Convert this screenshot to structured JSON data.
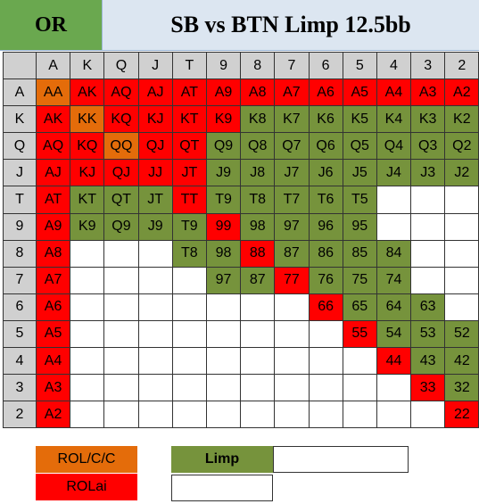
{
  "header": {
    "left_title": "OR",
    "right_title": "SB vs BTN Limp 12.5bb"
  },
  "ranks": [
    "A",
    "K",
    "Q",
    "J",
    "T",
    "9",
    "8",
    "7",
    "6",
    "5",
    "4",
    "3",
    "2"
  ],
  "colors": {
    "rolcc": "#e46c0a",
    "rolai": "#ff0000",
    "limp": "#76933c",
    "fold": "#ffffff",
    "label": "#d0d0d0"
  },
  "grid": [
    [
      [
        "AA",
        "rolcc"
      ],
      [
        "AK",
        "rolai"
      ],
      [
        "AQ",
        "rolai"
      ],
      [
        "AJ",
        "rolai"
      ],
      [
        "AT",
        "rolai"
      ],
      [
        "A9",
        "rolai"
      ],
      [
        "A8",
        "rolai"
      ],
      [
        "A7",
        "rolai"
      ],
      [
        "A6",
        "rolai"
      ],
      [
        "A5",
        "rolai"
      ],
      [
        "A4",
        "rolai"
      ],
      [
        "A3",
        "rolai"
      ],
      [
        "A2",
        "rolai"
      ]
    ],
    [
      [
        "AK",
        "rolai"
      ],
      [
        "KK",
        "rolcc"
      ],
      [
        "KQ",
        "rolai"
      ],
      [
        "KJ",
        "rolai"
      ],
      [
        "KT",
        "rolai"
      ],
      [
        "K9",
        "rolai"
      ],
      [
        "K8",
        "limp"
      ],
      [
        "K7",
        "limp"
      ],
      [
        "K6",
        "limp"
      ],
      [
        "K5",
        "limp"
      ],
      [
        "K4",
        "limp"
      ],
      [
        "K3",
        "limp"
      ],
      [
        "K2",
        "limp"
      ]
    ],
    [
      [
        "AQ",
        "rolai"
      ],
      [
        "KQ",
        "rolai"
      ],
      [
        "QQ",
        "rolcc"
      ],
      [
        "QJ",
        "rolai"
      ],
      [
        "QT",
        "rolai"
      ],
      [
        "Q9",
        "limp"
      ],
      [
        "Q8",
        "limp"
      ],
      [
        "Q7",
        "limp"
      ],
      [
        "Q6",
        "limp"
      ],
      [
        "Q5",
        "limp"
      ],
      [
        "Q4",
        "limp"
      ],
      [
        "Q3",
        "limp"
      ],
      [
        "Q2",
        "limp"
      ]
    ],
    [
      [
        "AJ",
        "rolai"
      ],
      [
        "KJ",
        "rolai"
      ],
      [
        "QJ",
        "rolai"
      ],
      [
        "JJ",
        "rolai"
      ],
      [
        "JT",
        "rolai"
      ],
      [
        "J9",
        "limp"
      ],
      [
        "J8",
        "limp"
      ],
      [
        "J7",
        "limp"
      ],
      [
        "J6",
        "limp"
      ],
      [
        "J5",
        "limp"
      ],
      [
        "J4",
        "limp"
      ],
      [
        "J3",
        "limp"
      ],
      [
        "J2",
        "limp"
      ]
    ],
    [
      [
        "AT",
        "rolai"
      ],
      [
        "KT",
        "limp"
      ],
      [
        "QT",
        "limp"
      ],
      [
        "JT",
        "limp"
      ],
      [
        "TT",
        "rolai"
      ],
      [
        "T9",
        "limp"
      ],
      [
        "T8",
        "limp"
      ],
      [
        "T7",
        "limp"
      ],
      [
        "T6",
        "limp"
      ],
      [
        "T5",
        "limp"
      ],
      [
        "",
        ""
      ],
      [
        "",
        ""
      ],
      [
        "",
        ""
      ]
    ],
    [
      [
        "A9",
        "rolai"
      ],
      [
        "K9",
        "limp"
      ],
      [
        "Q9",
        "limp"
      ],
      [
        "J9",
        "limp"
      ],
      [
        "T9",
        "limp"
      ],
      [
        "99",
        "rolai"
      ],
      [
        "98",
        "limp"
      ],
      [
        "97",
        "limp"
      ],
      [
        "96",
        "limp"
      ],
      [
        "95",
        "limp"
      ],
      [
        "",
        ""
      ],
      [
        "",
        ""
      ],
      [
        "",
        ""
      ]
    ],
    [
      [
        "A8",
        "rolai"
      ],
      [
        "",
        ""
      ],
      [
        "",
        ""
      ],
      [
        "",
        ""
      ],
      [
        "T8",
        "limp"
      ],
      [
        "98",
        "limp"
      ],
      [
        "88",
        "rolai"
      ],
      [
        "87",
        "limp"
      ],
      [
        "86",
        "limp"
      ],
      [
        "85",
        "limp"
      ],
      [
        "84",
        "limp"
      ],
      [
        "",
        ""
      ],
      [
        "",
        ""
      ]
    ],
    [
      [
        "A7",
        "rolai"
      ],
      [
        "",
        ""
      ],
      [
        "",
        ""
      ],
      [
        "",
        ""
      ],
      [
        "",
        ""
      ],
      [
        "97",
        "limp"
      ],
      [
        "87",
        "limp"
      ],
      [
        "77",
        "rolai"
      ],
      [
        "76",
        "limp"
      ],
      [
        "75",
        "limp"
      ],
      [
        "74",
        "limp"
      ],
      [
        "",
        ""
      ],
      [
        "",
        ""
      ]
    ],
    [
      [
        "A6",
        "rolai"
      ],
      [
        "",
        ""
      ],
      [
        "",
        ""
      ],
      [
        "",
        ""
      ],
      [
        "",
        ""
      ],
      [
        "",
        ""
      ],
      [
        "",
        ""
      ],
      [
        "",
        ""
      ],
      [
        "66",
        "rolai"
      ],
      [
        "65",
        "limp"
      ],
      [
        "64",
        "limp"
      ],
      [
        "63",
        "limp"
      ],
      [
        "",
        ""
      ]
    ],
    [
      [
        "A5",
        "rolai"
      ],
      [
        "",
        ""
      ],
      [
        "",
        ""
      ],
      [
        "",
        ""
      ],
      [
        "",
        ""
      ],
      [
        "",
        ""
      ],
      [
        "",
        ""
      ],
      [
        "",
        ""
      ],
      [
        "",
        ""
      ],
      [
        "55",
        "rolai"
      ],
      [
        "54",
        "limp"
      ],
      [
        "53",
        "limp"
      ],
      [
        "52",
        "limp"
      ]
    ],
    [
      [
        "A4",
        "rolai"
      ],
      [
        "",
        ""
      ],
      [
        "",
        ""
      ],
      [
        "",
        ""
      ],
      [
        "",
        ""
      ],
      [
        "",
        ""
      ],
      [
        "",
        ""
      ],
      [
        "",
        ""
      ],
      [
        "",
        ""
      ],
      [
        "",
        ""
      ],
      [
        "44",
        "rolai"
      ],
      [
        "43",
        "limp"
      ],
      [
        "42",
        "limp"
      ]
    ],
    [
      [
        "A3",
        "rolai"
      ],
      [
        "",
        ""
      ],
      [
        "",
        ""
      ],
      [
        "",
        ""
      ],
      [
        "",
        ""
      ],
      [
        "",
        ""
      ],
      [
        "",
        ""
      ],
      [
        "",
        ""
      ],
      [
        "",
        ""
      ],
      [
        "",
        ""
      ],
      [
        "",
        ""
      ],
      [
        "33",
        "rolai"
      ],
      [
        "32",
        "limp"
      ]
    ],
    [
      [
        "A2",
        "rolai"
      ],
      [
        "",
        ""
      ],
      [
        "",
        ""
      ],
      [
        "",
        ""
      ],
      [
        "",
        ""
      ],
      [
        "",
        ""
      ],
      [
        "",
        ""
      ],
      [
        "",
        ""
      ],
      [
        "",
        ""
      ],
      [
        "",
        ""
      ],
      [
        "",
        ""
      ],
      [
        "",
        ""
      ],
      [
        "22",
        "rolai"
      ]
    ]
  ],
  "legend": {
    "rolcc_label": "ROL/C/C",
    "rolai_label": "ROLai",
    "limp_label": "Limp"
  }
}
